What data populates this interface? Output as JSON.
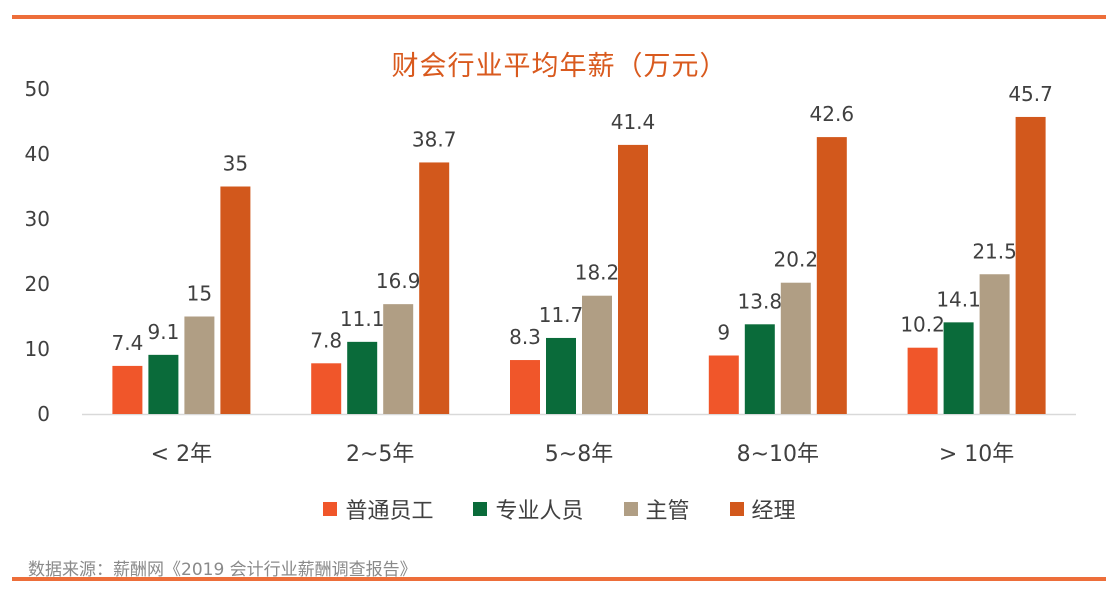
{
  "chart_data": {
    "type": "bar",
    "title": "财会行业平均年薪（万元）",
    "xlabel": "",
    "ylabel": "",
    "ylim": [
      0,
      50
    ],
    "yticks": [
      "0",
      "10",
      "20",
      "30",
      "40",
      "50"
    ],
    "grid": false,
    "legend_position": "bottom",
    "categories": [
      "< 2年",
      "2~5年",
      "5~8年",
      "8~10年",
      "> 10年"
    ],
    "series": [
      {
        "name": "普通员工",
        "color": "#F0562A",
        "values": [
          7.4,
          7.8,
          8.3,
          9,
          10.2
        ],
        "labels": [
          "7.4",
          "7.8",
          "8.3",
          "9",
          "10.2"
        ]
      },
      {
        "name": "专业人员",
        "color": "#0A6B3A",
        "values": [
          9.1,
          11.1,
          11.7,
          13.8,
          14.1
        ],
        "labels": [
          "9.1",
          "11.1",
          "11.7",
          "13.8",
          "14.1"
        ]
      },
      {
        "name": "主管",
        "color": "#B09E84",
        "values": [
          15,
          16.9,
          18.2,
          20.2,
          21.5
        ],
        "labels": [
          "15",
          "16.9",
          "18.2",
          "20.2",
          "21.5"
        ]
      },
      {
        "name": "经理",
        "color": "#D2581C",
        "values": [
          35,
          38.7,
          41.4,
          42.6,
          45.7
        ],
        "labels": [
          "35",
          "38.7",
          "41.4",
          "42.6",
          "45.7"
        ]
      }
    ]
  },
  "source_note": "数据来源：薪酬网《2019 会计行业薪酬调查报告》",
  "colors": {
    "accent_rule": "#ED6E3A",
    "title": "#D95A1E"
  }
}
